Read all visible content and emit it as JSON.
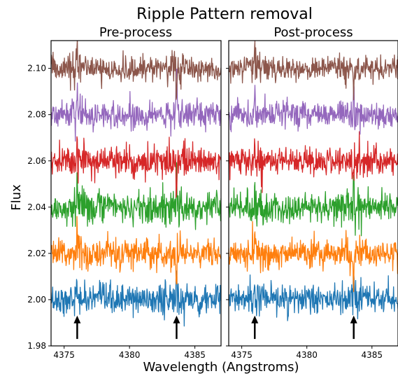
{
  "chart_data": {
    "type": "line",
    "title": "Ripple Pattern removal",
    "xlabel": "Wavelength (Angstroms)",
    "ylabel": "Flux",
    "xlim": [
      4374.0,
      4387.0
    ],
    "ylim": [
      1.98,
      2.112
    ],
    "x_ticks": [
      4375,
      4380,
      4385
    ],
    "x_tick_labels": [
      "4375",
      "4380",
      "4385"
    ],
    "y_ticks": [
      1.98,
      2.0,
      2.02,
      2.04,
      2.06,
      2.08,
      2.1
    ],
    "y_tick_labels": [
      "1.98",
      "2.00",
      "2.02",
      "2.04",
      "2.06",
      "2.08",
      "2.10"
    ],
    "grid": false,
    "legend": "none",
    "arrow_markers_x": [
      4376.0,
      4383.6
    ],
    "spike_x": [
      4376.0,
      4383.6
    ],
    "panels": [
      {
        "title": "Pre-process",
        "series": [
          {
            "baseline": 2.0,
            "color": "#1f77b4",
            "noise": 0.0032
          },
          {
            "baseline": 2.02,
            "color": "#ff7f0e",
            "noise": 0.0032
          },
          {
            "baseline": 2.04,
            "color": "#2ca02c",
            "noise": 0.0035
          },
          {
            "baseline": 2.06,
            "color": "#d62728",
            "noise": 0.0032
          },
          {
            "baseline": 2.08,
            "color": "#9467bd",
            "noise": 0.003
          },
          {
            "baseline": 2.1,
            "color": "#8c564b",
            "noise": 0.0026
          }
        ]
      },
      {
        "title": "Post-process",
        "series": [
          {
            "baseline": 2.0,
            "color": "#1f77b4",
            "noise": 0.0028
          },
          {
            "baseline": 2.02,
            "color": "#ff7f0e",
            "noise": 0.0028
          },
          {
            "baseline": 2.04,
            "color": "#2ca02c",
            "noise": 0.0032
          },
          {
            "baseline": 2.06,
            "color": "#d62728",
            "noise": 0.003
          },
          {
            "baseline": 2.08,
            "color": "#9467bd",
            "noise": 0.0028
          },
          {
            "baseline": 2.1,
            "color": "#8c564b",
            "noise": 0.0024
          }
        ]
      }
    ]
  }
}
